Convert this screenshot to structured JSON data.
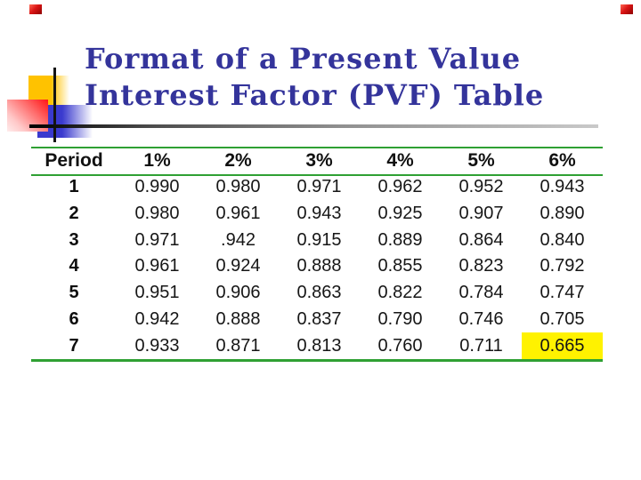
{
  "slide": {
    "title_line1": "Format of a Present Value",
    "title_line2": "Interest Factor (PVF) Table"
  },
  "table": {
    "headers": [
      "Period",
      "1%",
      "2%",
      "3%",
      "4%",
      "5%",
      "6%"
    ],
    "rows": [
      [
        "1",
        "0.990",
        "0.980",
        "0.971",
        "0.962",
        "0.952",
        "0.943"
      ],
      [
        "2",
        "0.980",
        "0.961",
        "0.943",
        "0.925",
        "0.907",
        "0.890"
      ],
      [
        "3",
        "0.971",
        ".942",
        "0.915",
        "0.889",
        "0.864",
        "0.840"
      ],
      [
        "4",
        "0.961",
        "0.924",
        "0.888",
        "0.855",
        "0.823",
        "0.792"
      ],
      [
        "5",
        "0.951",
        "0.906",
        "0.863",
        "0.822",
        "0.784",
        "0.747"
      ],
      [
        "6",
        "0.942",
        "0.888",
        "0.837",
        "0.790",
        "0.746",
        "0.705"
      ],
      [
        "7",
        "0.933",
        "0.871",
        "0.813",
        "0.760",
        "0.711",
        "0.665"
      ]
    ],
    "highlighted_cell": {
      "period": "7",
      "rate": "6%",
      "value": "0.665"
    }
  },
  "colors": {
    "title_blue": "#34349b",
    "table_rule_green": "#2fa033",
    "highlight_yellow": "#fff200",
    "decoration_yellow": "#ffc200",
    "decoration_blue": "#3a3ace",
    "decoration_red": "#ff1515",
    "corner_accent_red": "#da1515"
  }
}
